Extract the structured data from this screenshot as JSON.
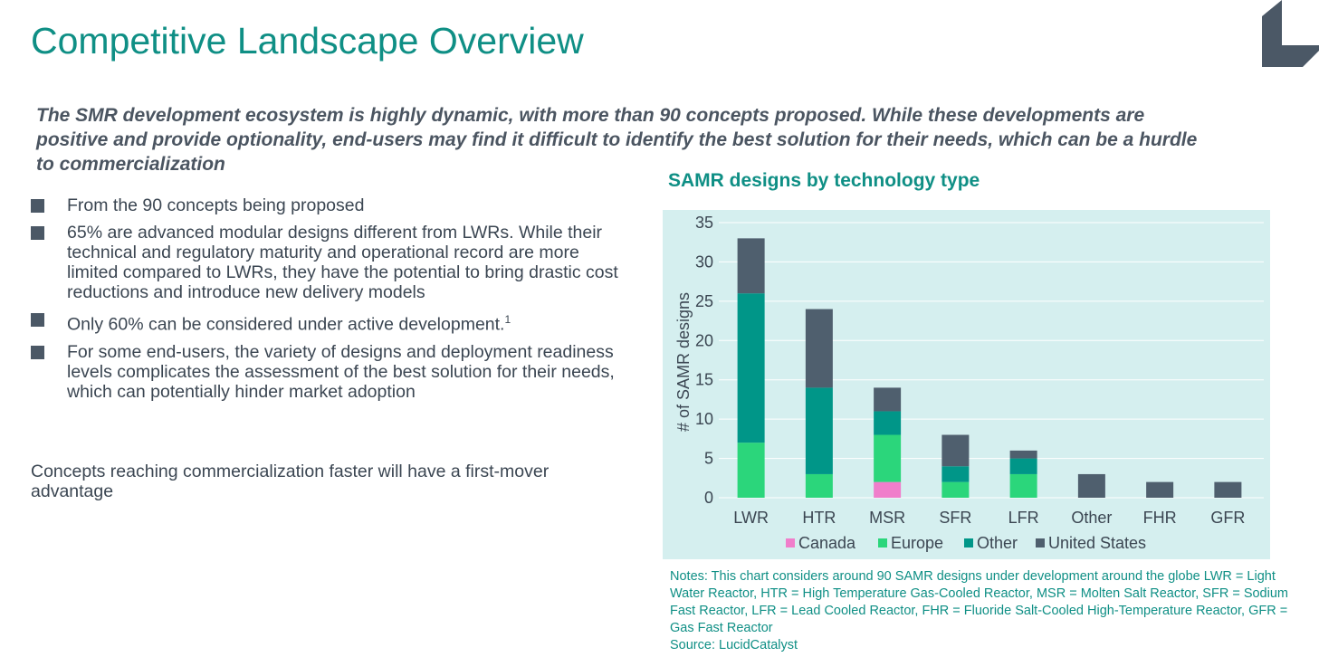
{
  "slide": {
    "title": "Competitive Landscape Overview",
    "subtitle": "The SMR development ecosystem is highly dynamic, with more than 90 concepts proposed. While these developments are positive and provide optionality, end-users may find it difficult to identify the best solution for their needs, which can be a hurdle to commercialization",
    "bullets": [
      {
        "text": "From the 90 concepts being proposed",
        "sup": ""
      },
      {
        "text": "65% are advanced modular designs different from LWRs. While their technical and regulatory maturity and operational record are more limited compared to LWRs, they have the potential to bring drastic cost reductions and introduce new delivery models",
        "sup": ""
      },
      {
        "text": "Only 60% can be considered under active development.",
        "sup": "1"
      },
      {
        "text": "For some end-users, the variety of designs and  deployment readiness levels complicates the assessment of the best solution for their needs, which can potentially hinder market adoption",
        "sup": ""
      }
    ],
    "closing": "Concepts reaching commercialization faster will have a first-mover advantage",
    "chart_heading": "SAMR designs by technology type",
    "notes": "Notes: This chart considers around 90 SAMR designs under development around the globe LWR = Light Water Reactor, HTR = High Temperature Gas-Cooled Reactor, MSR = Molten Salt Reactor, SFR = Sodium Fast Reactor, LFR = Lead Cooled Reactor, FHR = Fluoride Salt-Cooled High-Temperature Reactor, GFR = Gas Fast Reactor",
    "source": "Source: LucidCatalyst",
    "colors": {
      "accent": "#0f8f85",
      "logo": "#4b5866",
      "chart_bg": "#d5efef"
    }
  },
  "chart_data": {
    "type": "bar",
    "stacked": true,
    "categories": [
      "LWR",
      "HTR",
      "MSR",
      "SFR",
      "LFR",
      "Other",
      "FHR",
      "GFR"
    ],
    "series": [
      {
        "name": "Canada",
        "color": "#f07ecb",
        "values": [
          0,
          0,
          2,
          0,
          0,
          0,
          0,
          0
        ]
      },
      {
        "name": "Europe",
        "color": "#2bd67b",
        "values": [
          7,
          3,
          6,
          2,
          3,
          0,
          0,
          0
        ]
      },
      {
        "name": "Other",
        "color": "#009688",
        "values": [
          19,
          11,
          3,
          2,
          2,
          0,
          0,
          0
        ]
      },
      {
        "name": "United States",
        "color": "#4f5f6e",
        "values": [
          7,
          10,
          3,
          4,
          1,
          3,
          2,
          2
        ]
      }
    ],
    "ylabel": "# of SAMR designs",
    "ylim": [
      0,
      35
    ],
    "yticks": [
      0,
      5,
      10,
      15,
      20,
      25,
      30,
      35
    ],
    "grid": true,
    "legend": "bottom"
  }
}
